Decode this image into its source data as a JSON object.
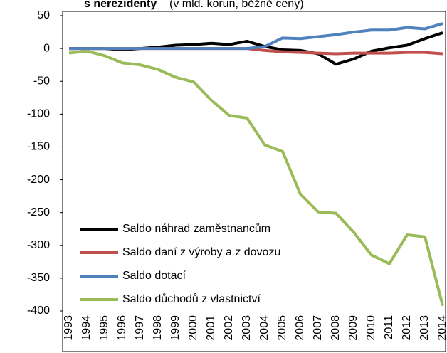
{
  "chart_data": {
    "type": "line",
    "title_bold": "s nerezidenty",
    "title_rest": "(v mld. korun, běžné ceny)",
    "categories": [
      "1993",
      "1994",
      "1995",
      "1996",
      "1997",
      "1998",
      "1999",
      "2000",
      "2001",
      "2002",
      "2003",
      "2004",
      "2005",
      "2006",
      "2007",
      "2008",
      "2009",
      "2010",
      "2011",
      "2012",
      "2013",
      "2014"
    ],
    "series": [
      {
        "name": "Saldo náhrad zaměstnancům",
        "color": "#000000",
        "values": [
          0,
          0,
          0,
          -2,
          0,
          2,
          5,
          6,
          8,
          6,
          11,
          3,
          -2,
          -3,
          -8,
          -24,
          -16,
          -4,
          1,
          5,
          15,
          24
        ]
      },
      {
        "name": "Saldo daní z výroby a z dovozu",
        "color": "#c0504d",
        "values": [
          0,
          0,
          0,
          0,
          0,
          0,
          0,
          0,
          0,
          0,
          0,
          -3,
          -5,
          -6,
          -7,
          -8,
          -7,
          -7,
          -7,
          -6,
          -6,
          -8
        ]
      },
      {
        "name": "Saldo dotací",
        "color": "#4f81bd",
        "values": [
          0,
          0,
          0,
          0,
          0,
          0,
          0,
          0,
          0,
          0,
          0,
          3,
          16,
          15,
          18,
          21,
          25,
          28,
          28,
          32,
          30,
          38
        ]
      },
      {
        "name": "Saldo důchodů z vlastnictví",
        "color": "#9bbb59",
        "values": [
          -7,
          -4,
          -11,
          -22,
          -25,
          -32,
          -44,
          -51,
          -79,
          -102,
          -106,
          -147,
          -157,
          -222,
          -249,
          -251,
          -280,
          -315,
          -328,
          -284,
          -287,
          -392
        ]
      }
    ],
    "ylim": [
      -400,
      50
    ],
    "yticks": [
      -400,
      -350,
      -300,
      -250,
      -200,
      -150,
      -100,
      -50,
      0,
      50
    ],
    "legend": "lower-left"
  }
}
